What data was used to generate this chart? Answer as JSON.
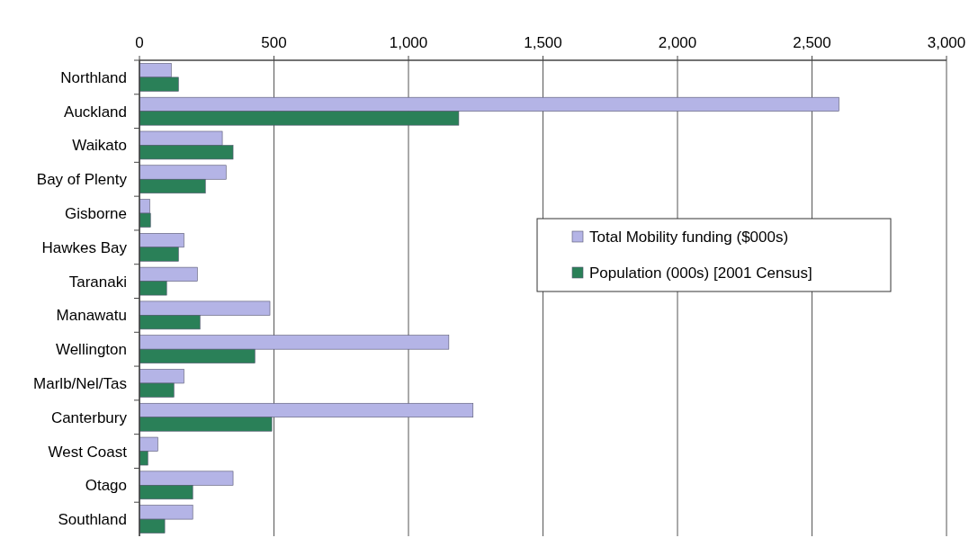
{
  "chart_data": {
    "type": "bar",
    "orientation": "horizontal",
    "categories": [
      "Northland",
      "Auckland",
      "Waikato",
      "Bay of Plenty",
      "Gisborne",
      "Hawkes Bay",
      "Taranaki",
      "Manawatu",
      "Wellington",
      "Marlb/Nel/Tas",
      "Canterbury",
      "West Coast",
      "Otago",
      "Southland"
    ],
    "series": [
      {
        "name": "Total Mobility funding ($000s)",
        "color": "#b4b4e6",
        "values": [
          118,
          2600,
          308,
          322,
          38,
          165,
          215,
          485,
          1150,
          165,
          1240,
          68,
          348,
          198
        ]
      },
      {
        "name": "Population (000s) [2001 Census]",
        "color": "#2a8058",
        "values": [
          145,
          1187,
          348,
          245,
          41,
          145,
          101,
          225,
          429,
          128,
          492,
          31,
          198,
          94
        ]
      }
    ],
    "xlim": [
      0,
      3000
    ],
    "xticks": [
      0,
      {
        "value": 500,
        "label": "500"
      },
      {
        "value": 1000,
        "label": "1,000"
      },
      {
        "value": 1500,
        "label": "1,500"
      },
      {
        "value": 2000,
        "label": "2,000"
      },
      {
        "value": 2500,
        "label": "2,500"
      },
      {
        "value": 3000,
        "label": "3,000"
      }
    ],
    "grid": "x",
    "legend": "right"
  }
}
